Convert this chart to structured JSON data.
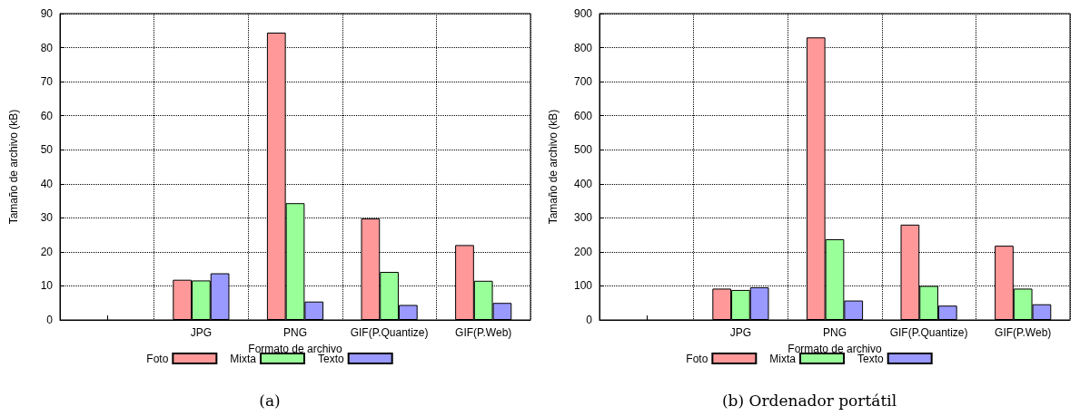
{
  "chart_data": [
    {
      "type": "bar",
      "title": "(a)",
      "xlabel": "Formato de archivo",
      "ylabel": "Tamaño de archivo (kB)",
      "categories": [
        null,
        "JPG",
        "PNG",
        "GIF(P.Quantize)",
        "GIF(P.Web)"
      ],
      "series": [
        {
          "name": "Foto",
          "color": "#ff9999",
          "values": [
            null,
            11.8,
            84.4,
            29.8,
            22.0
          ]
        },
        {
          "name": "Mixta",
          "color": "#99ff99",
          "values": [
            null,
            11.6,
            34.3,
            14.1,
            11.5
          ]
        },
        {
          "name": "Texto",
          "color": "#9999ff",
          "values": [
            null,
            13.7,
            5.4,
            4.4,
            5.0
          ]
        }
      ],
      "ylim": [
        0,
        90
      ],
      "yticks": [
        0,
        10,
        20,
        30,
        40,
        50,
        60,
        70,
        80,
        90
      ],
      "grid": true,
      "legend": "bottom"
    },
    {
      "type": "bar",
      "title": "(b) Ordenador portátil",
      "xlabel": "Formato de archivo",
      "ylabel": "Tamaño de archivo (kB)",
      "categories": [
        null,
        "JPG",
        "PNG",
        "GIF(P.Quantize)",
        "GIF(P.Web)"
      ],
      "series": [
        {
          "name": "Foto",
          "color": "#ff9999",
          "values": [
            null,
            92,
            830,
            280,
            218
          ]
        },
        {
          "name": "Mixta",
          "color": "#99ff99",
          "values": [
            null,
            88,
            237,
            100,
            92
          ]
        },
        {
          "name": "Texto",
          "color": "#9999ff",
          "values": [
            null,
            96,
            57,
            42,
            46
          ]
        }
      ],
      "ylim": [
        0,
        900
      ],
      "yticks": [
        0,
        100,
        200,
        300,
        400,
        500,
        600,
        700,
        800,
        900
      ],
      "grid": true,
      "legend": "bottom"
    }
  ]
}
